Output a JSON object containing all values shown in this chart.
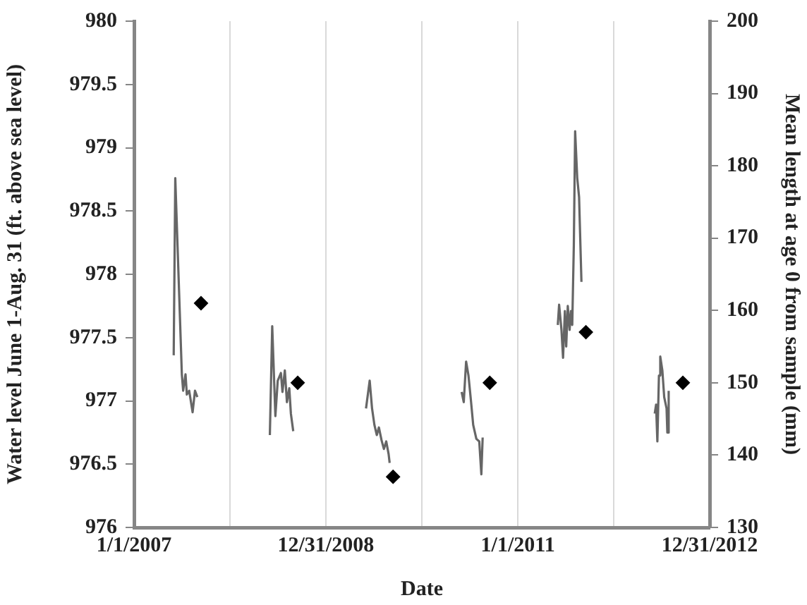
{
  "chart_data": {
    "type": "line",
    "xlabel": "Date",
    "ylabel": "Water level June 1-Aug. 31 (ft. above sea level)",
    "y2label": "Mean length at age 0 from sample (mm)",
    "xlim": [
      "2007-01-01",
      "2012-12-31"
    ],
    "xticks": [
      {
        "value": "2007-01-01",
        "label": "1/1/2007"
      },
      {
        "value": "2008-01-01",
        "label": null
      },
      {
        "value": "2008-12-31",
        "label": "12/31/2008"
      },
      {
        "value": "2009-12-31",
        "label": null
      },
      {
        "value": "2011-01-01",
        "label": "1/1/2011"
      },
      {
        "value": "2012-01-01",
        "label": null
      },
      {
        "value": "2012-12-31",
        "label": "12/31/2012"
      }
    ],
    "ylim": [
      976,
      980
    ],
    "yticks": [
      976,
      976.5,
      977,
      977.5,
      978,
      978.5,
      979,
      979.5,
      980
    ],
    "y2lim": [
      130,
      200
    ],
    "y2ticks": [
      130,
      140,
      150,
      160,
      170,
      180,
      190,
      200
    ],
    "grid": "x",
    "line_style": "solid",
    "series": [
      {
        "color": "#666666",
        "x": [
          "2007-06-01",
          "2007-06-07",
          "2007-07-02",
          "2007-07-07",
          "2007-07-16",
          "2007-07-21",
          "2007-07-30",
          "2007-08-12",
          "2007-08-21",
          "2007-08-30"
        ],
        "values": [
          977.36,
          978.76,
          977.21,
          977.08,
          977.21,
          977.05,
          977.08,
          976.91,
          977.08,
          977.03
        ]
      },
      {
        "color": "#666666",
        "x": [
          "2008-06-01",
          "2008-06-10",
          "2008-06-22",
          "2008-07-01",
          "2008-07-13",
          "2008-07-19",
          "2008-07-28",
          "2008-08-05",
          "2008-08-14",
          "2008-08-20",
          "2008-08-29"
        ],
        "values": [
          976.73,
          977.59,
          976.88,
          977.16,
          977.22,
          977.07,
          977.24,
          976.99,
          977.1,
          976.9,
          976.76
        ]
      },
      {
        "color": "#666666",
        "x": [
          "2009-06-02",
          "2009-06-16",
          "2009-06-25",
          "2009-07-04",
          "2009-07-13",
          "2009-07-21",
          "2009-07-31",
          "2009-08-09",
          "2009-08-18",
          "2009-08-27",
          "2009-08-31"
        ],
        "values": [
          976.94,
          977.16,
          976.94,
          976.81,
          976.73,
          976.79,
          976.69,
          976.62,
          976.68,
          976.58,
          976.51
        ]
      },
      {
        "color": "#666666",
        "x": [
          "2010-06-01",
          "2010-06-09",
          "2010-06-18",
          "2010-06-27",
          "2010-07-06",
          "2010-07-15",
          "2010-07-27",
          "2010-08-07",
          "2010-08-15",
          "2010-08-20"
        ],
        "values": [
          977.07,
          976.99,
          977.31,
          977.2,
          977.01,
          976.81,
          976.7,
          976.68,
          976.42,
          976.71
        ]
      },
      {
        "color": "#666666",
        "x": [
          "2011-06-02",
          "2011-06-07",
          "2011-06-16",
          "2011-06-22",
          "2011-06-29",
          "2011-07-04",
          "2011-07-10",
          "2011-07-17",
          "2011-07-22",
          "2011-07-27",
          "2011-08-02",
          "2011-08-07",
          "2011-08-15",
          "2011-08-22",
          "2011-08-31"
        ],
        "values": [
          977.6,
          977.76,
          977.56,
          977.34,
          977.71,
          977.43,
          977.75,
          977.56,
          977.71,
          977.6,
          978.23,
          979.13,
          978.76,
          978.61,
          977.94
        ]
      },
      {
        "color": "#666666",
        "x": [
          "2012-06-05",
          "2012-06-10",
          "2012-06-15",
          "2012-06-21",
          "2012-06-26",
          "2012-07-04",
          "2012-07-11",
          "2012-07-20",
          "2012-07-23",
          "2012-07-28"
        ],
        "values": [
          976.9,
          976.97,
          976.68,
          977.2,
          977.35,
          977.24,
          977.03,
          976.94,
          976.75,
          977.08
        ]
      },
      {
        "type": "scatter",
        "axis": "y2",
        "marker": "diamond",
        "color": "#000000",
        "x": [
          "2007-09-13",
          "2008-09-15",
          "2009-09-13",
          "2010-09-16",
          "2011-09-17",
          "2012-09-20"
        ],
        "values": [
          161,
          150,
          137,
          150,
          157,
          150
        ]
      }
    ]
  }
}
